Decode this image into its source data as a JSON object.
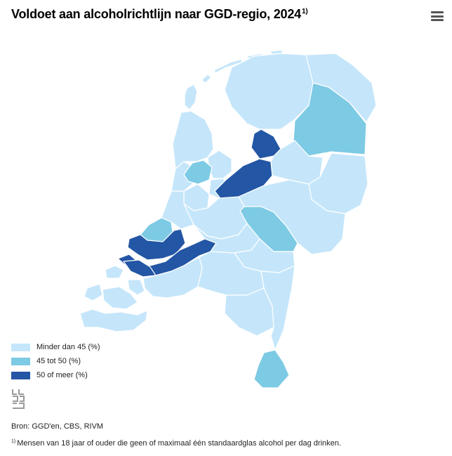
{
  "title": {
    "text": "Voldoet aan alcoholrichtlijn naar GGD-regio, 2024",
    "note_marker": "1)"
  },
  "menu": {
    "icon": "hamburger-menu-icon"
  },
  "colors": {
    "low": "#c5e6fa",
    "mid": "#7dcae4",
    "high": "#2356a4",
    "border": "#ffffff"
  },
  "legend": {
    "items": [
      {
        "label": "Minder dan 45 (%)",
        "class": "low"
      },
      {
        "label": "45 tot 50 (%)",
        "class": "mid"
      },
      {
        "label": "50 of meer (%)",
        "class": "high"
      }
    ]
  },
  "logo": {
    "icon": "cbs-logo-icon"
  },
  "source": "Bron: GGD'en, CBS, RIVM",
  "footnote": {
    "marker": "1)",
    "text": "Mensen van 18 jaar of ouder die geen of maximaal één standaardglas alcohol per dag drinken."
  }
}
